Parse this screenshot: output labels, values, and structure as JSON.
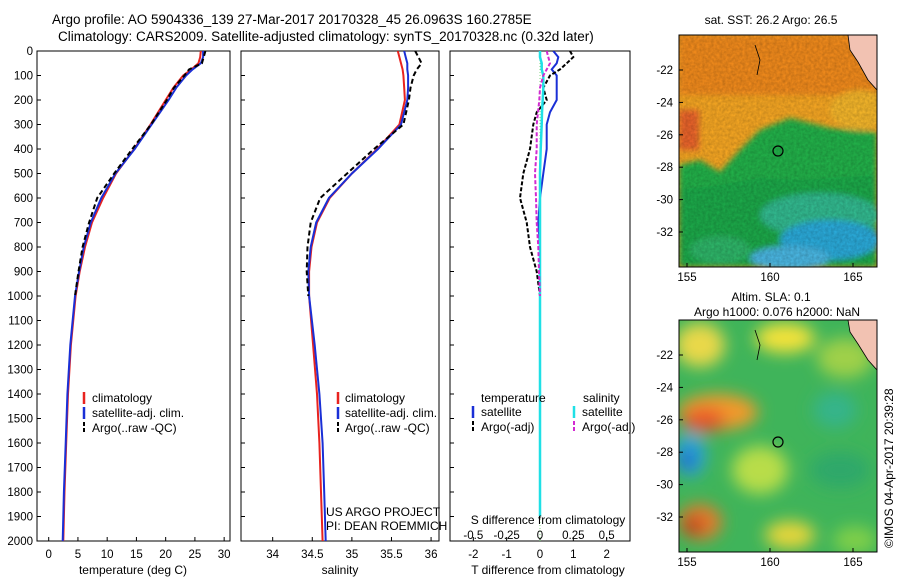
{
  "header": {
    "title_line1": "Argo profile: AO 5904336_139 27-Mar-2017 20170328_45 26.0963S 160.2785E",
    "title_line2": "Climatology: CARS2009. Satellite-adjusted climatology: synTS_20170328.nc (0.32d later)"
  },
  "colors": {
    "climatology": "#e8231f",
    "satellite": "#1a2fd6",
    "argo": "#000000",
    "sat_s": "#1fe0e6",
    "argo_s": "#d22ad2"
  },
  "panels": {
    "depth_ticks": [
      "0",
      "100",
      "200",
      "300",
      "400",
      "500",
      "600",
      "700",
      "800",
      "900",
      "1000",
      "1100",
      "1200",
      "1300",
      "1400",
      "1500",
      "1600",
      "1700",
      "1800",
      "1900",
      "2000"
    ],
    "temperature": {
      "xlabel": "temperature (deg C)",
      "xticks": [
        "0",
        "5",
        "10",
        "15",
        "20",
        "25",
        "30"
      ],
      "legend": [
        "climatology",
        "satellite-adj. clim.",
        "Argo(..raw -QC)"
      ]
    },
    "salinity": {
      "xlabel": "salinity",
      "xticks": [
        "34",
        "34.5",
        "35",
        "35.5",
        "36"
      ],
      "legend": [
        "climatology",
        "satellite-adj. clim.",
        "Argo(..raw -QC)"
      ],
      "credit1": "US ARGO PROJECT",
      "credit2": "PI: DEAN ROEMMICH"
    },
    "difference": {
      "xlabel_top": "S difference from climatology",
      "xticks_top": [
        "-0.5",
        "-0.25",
        "0",
        "0.25",
        "0.5"
      ],
      "xlabel": "T difference from climatology",
      "xticks": [
        "-2",
        "-1",
        "0",
        "1",
        "2"
      ],
      "legend_head_t": "temperature",
      "legend_head_s": "salinity",
      "legend_t": [
        "satellite",
        "Argo(-adj)"
      ],
      "legend_s": [
        "satellite",
        "Argo(-adj)"
      ]
    },
    "sst_map": {
      "title": "sat. SST: 26.2  Argo: 26.5",
      "yticks": [
        "-22",
        "-24",
        "-26",
        "-28",
        "-30",
        "-32"
      ],
      "xticks": [
        "155",
        "160",
        "165"
      ]
    },
    "sla_map": {
      "title1": "Altim. SLA: 0.1",
      "title2": "Argo h1000: 0.076 h2000: NaN",
      "yticks": [
        "-22",
        "-24",
        "-26",
        "-28",
        "-30",
        "-32"
      ],
      "xticks": [
        "155",
        "160",
        "165"
      ]
    },
    "stamp": "©IMOS 04-Apr-2017 20:39:28"
  },
  "chart_data": [
    {
      "type": "line",
      "xlabel": "temperature (deg C)",
      "xlim": [
        -2,
        31
      ],
      "ylim": [
        2000,
        0
      ],
      "depth": [
        0,
        25,
        50,
        75,
        100,
        150,
        200,
        300,
        400,
        500,
        600,
        700,
        800,
        900,
        1000,
        1200,
        1400,
        1600,
        1800,
        2000
      ],
      "series": [
        {
          "name": "climatology",
          "values": [
            26.0,
            25.9,
            25.6,
            24.4,
            23.0,
            21.3,
            20.0,
            17.4,
            14.6,
            11.5,
            9.3,
            7.4,
            6.2,
            5.3,
            4.6,
            3.8,
            3.3,
            3.0,
            2.7,
            2.5
          ]
        },
        {
          "name": "satellite-adj. clim.",
          "values": [
            26.4,
            26.4,
            26.0,
            24.6,
            23.5,
            21.8,
            20.5,
            17.6,
            14.7,
            11.4,
            9.0,
            7.2,
            6.0,
            5.2,
            4.5,
            3.7,
            3.2,
            2.9,
            2.6,
            2.4
          ]
        },
        {
          "name": "Argo(..raw -QC)",
          "values": [
            26.8,
            26.5,
            26.2,
            24.0,
            23.2,
            21.4,
            20.2,
            17.5,
            14.3,
            11.2,
            8.3,
            6.9,
            5.8,
            5.1,
            4.5
          ]
        }
      ]
    },
    {
      "type": "line",
      "xlabel": "salinity",
      "xlim": [
        33.6,
        36.1
      ],
      "ylim": [
        2000,
        0
      ],
      "depth": [
        0,
        25,
        50,
        75,
        100,
        150,
        200,
        300,
        400,
        500,
        600,
        700,
        800,
        900,
        1000,
        1200,
        1400,
        1600,
        1800,
        2000
      ],
      "series": [
        {
          "name": "climatology",
          "values": [
            35.58,
            35.6,
            35.62,
            35.64,
            35.65,
            35.66,
            35.67,
            35.6,
            35.32,
            35.0,
            34.72,
            34.56,
            34.49,
            34.46,
            34.46,
            34.51,
            34.56,
            34.59,
            34.61,
            34.63
          ]
        },
        {
          "name": "satellite-adj. clim.",
          "values": [
            35.66,
            35.68,
            35.7,
            35.7,
            35.71,
            35.71,
            35.7,
            35.62,
            35.33,
            35.0,
            34.71,
            34.55,
            34.48,
            34.45,
            34.46,
            34.53,
            34.59,
            34.63,
            34.65,
            34.67
          ]
        },
        {
          "name": "Argo(..raw -QC)",
          "values": [
            35.8,
            35.84,
            35.88,
            35.82,
            35.78,
            35.74,
            35.72,
            35.65,
            35.28,
            34.94,
            34.6,
            34.48,
            34.44,
            34.43,
            34.45
          ]
        }
      ]
    },
    {
      "type": "line",
      "xlabel": "T difference from climatology",
      "xlim": [
        -2.7,
        2.7
      ],
      "ylim": [
        2000,
        0
      ],
      "depth": [
        0,
        25,
        50,
        75,
        100,
        150,
        200,
        250,
        300,
        400,
        500,
        600,
        700,
        800,
        900,
        1000,
        1200,
        1400,
        1600,
        1800,
        1900
      ],
      "series": [
        {
          "name": "temperature satellite",
          "values": [
            0.4,
            0.55,
            0.5,
            0.35,
            0.5,
            0.5,
            0.5,
            0.3,
            0.2,
            0.2,
            0.1,
            0.0,
            -0.05,
            0.0,
            0.0,
            0.0,
            0.0,
            0.0,
            0.0,
            0.0,
            0.0
          ]
        },
        {
          "name": "temperature Argo(-adj)",
          "values": [
            0.9,
            1.0,
            0.8,
            0.6,
            0.3,
            0.1,
            0.2,
            -0.1,
            -0.2,
            -0.3,
            -0.5,
            -0.6,
            -0.4,
            -0.3,
            -0.1,
            0.0
          ]
        },
        {
          "name": "salinity satellite",
          "values": [
            0.0,
            0.0,
            0.05,
            0.05,
            0.1,
            0.1,
            0.08,
            0.06,
            0.05,
            0.02,
            0.0,
            0.0,
            0.0,
            0.0,
            0.0,
            0.0,
            0.0,
            0.0,
            0.0,
            0.0,
            0.0
          ]
        },
        {
          "name": "salinity Argo(-adj)",
          "values": [
            0.2,
            0.25,
            0.3,
            0.2,
            0.1,
            0.0,
            -0.02,
            -0.06,
            -0.1,
            -0.1,
            -0.15,
            -0.12,
            -0.1,
            -0.05,
            -0.03,
            0.0
          ]
        }
      ]
    }
  ]
}
